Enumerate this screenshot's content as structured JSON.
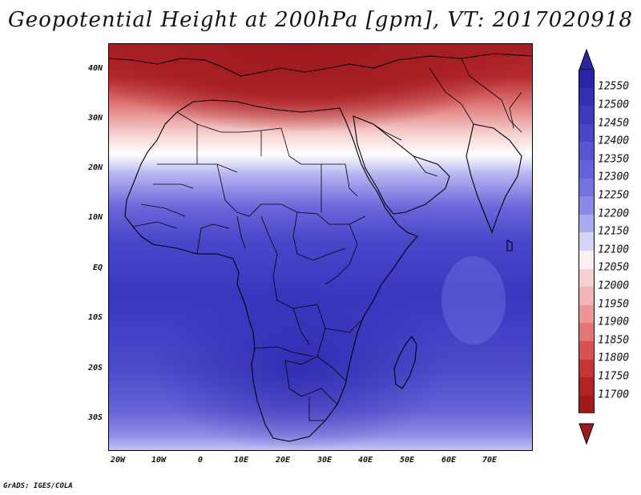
{
  "title": "Geopotential Height at 200hPa [gpm], VT: 2017020918",
  "footer": "GrADS: IGES/COLA",
  "axes": {
    "lat_labels": [
      "40N",
      "30N",
      "20N",
      "10N",
      "EQ",
      "10S",
      "20S",
      "30S"
    ],
    "lon_labels": [
      "20W",
      "10W",
      "0",
      "10E",
      "20E",
      "30E",
      "40E",
      "50E",
      "60E",
      "70E"
    ]
  },
  "colorbar": {
    "labels": [
      "12550",
      "12500",
      "12450",
      "12400",
      "12350",
      "12300",
      "12250",
      "12200",
      "12150",
      "12100",
      "12050",
      "12000",
      "11950",
      "11900",
      "11850",
      "11800",
      "11750",
      "11700"
    ],
    "colors": [
      "#2a25a8",
      "#3330b6",
      "#3d3cc0",
      "#4847c9",
      "#5755d2",
      "#6563d9",
      "#7472e0",
      "#8a89e7",
      "#aaa9ef",
      "#d3d3f8",
      "#fbf0f0",
      "#f6cfcf",
      "#f2b4b4",
      "#ec9696",
      "#e37575",
      "#d85252",
      "#c83434",
      "#b52223",
      "#a01a1c"
    ]
  },
  "map": {
    "region": "Africa",
    "lon_range": [
      -22,
      80
    ],
    "lat_range": [
      -37,
      45
    ],
    "colors": {
      "north_high": "#a51e22",
      "south_low": "#3b36b8"
    }
  }
}
